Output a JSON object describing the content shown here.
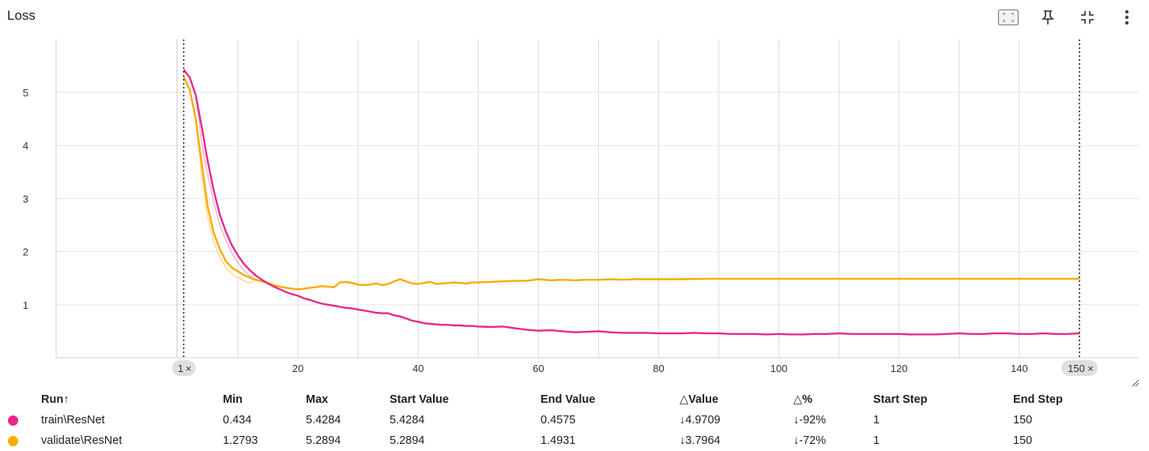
{
  "card": {
    "title": "Loss"
  },
  "toolbar": {
    "icons": [
      "fit-to-data-icon",
      "pin-icon",
      "collapse-icon",
      "more-vert-icon"
    ]
  },
  "colors": {
    "train": "#e7298a",
    "validate": "#f9ab00",
    "train_faint": "#f3b7d6",
    "validate_faint": "#fbdd9a"
  },
  "chart_data": {
    "type": "line",
    "xlim": [
      1,
      150
    ],
    "ylim": [
      0,
      5.5
    ],
    "x_ticks": [
      20,
      40,
      60,
      80,
      100,
      120,
      140
    ],
    "y_ticks": [
      1,
      2,
      3,
      4,
      5
    ],
    "range_markers": [
      {
        "label": "1",
        "x": 1
      },
      {
        "label": "150",
        "x": 150
      }
    ],
    "grid": true,
    "series": [
      {
        "name": "train\\ResNet",
        "color": "#e7298a",
        "points": [
          [
            1,
            5.43
          ],
          [
            2,
            5.28
          ],
          [
            3,
            4.95
          ],
          [
            4,
            4.35
          ],
          [
            5,
            3.7
          ],
          [
            6,
            3.15
          ],
          [
            7,
            2.7
          ],
          [
            8,
            2.38
          ],
          [
            9,
            2.12
          ],
          [
            10,
            1.93
          ],
          [
            11,
            1.77
          ],
          [
            12,
            1.65
          ],
          [
            13,
            1.55
          ],
          [
            14,
            1.47
          ],
          [
            15,
            1.4
          ],
          [
            16,
            1.34
          ],
          [
            17,
            1.29
          ],
          [
            18,
            1.24
          ],
          [
            19,
            1.2
          ],
          [
            20,
            1.17
          ],
          [
            21,
            1.12
          ],
          [
            22,
            1.09
          ],
          [
            23,
            1.05
          ],
          [
            24,
            1.02
          ],
          [
            25,
            1.0
          ],
          [
            26,
            0.98
          ],
          [
            27,
            0.96
          ],
          [
            28,
            0.94
          ],
          [
            29,
            0.93
          ],
          [
            30,
            0.91
          ],
          [
            31,
            0.89
          ],
          [
            32,
            0.87
          ],
          [
            33,
            0.85
          ],
          [
            34,
            0.84
          ],
          [
            35,
            0.84
          ],
          [
            36,
            0.8
          ],
          [
            37,
            0.78
          ],
          [
            38,
            0.74
          ],
          [
            39,
            0.7
          ],
          [
            40,
            0.68
          ],
          [
            41,
            0.65
          ],
          [
            42,
            0.64
          ],
          [
            43,
            0.63
          ],
          [
            44,
            0.62
          ],
          [
            45,
            0.62
          ],
          [
            46,
            0.61
          ],
          [
            47,
            0.61
          ],
          [
            48,
            0.6
          ],
          [
            49,
            0.6
          ],
          [
            50,
            0.59
          ],
          [
            52,
            0.58
          ],
          [
            54,
            0.59
          ],
          [
            56,
            0.56
          ],
          [
            58,
            0.53
          ],
          [
            60,
            0.51
          ],
          [
            62,
            0.52
          ],
          [
            64,
            0.5
          ],
          [
            66,
            0.48
          ],
          [
            68,
            0.49
          ],
          [
            70,
            0.5
          ],
          [
            72,
            0.48
          ],
          [
            74,
            0.47
          ],
          [
            76,
            0.47
          ],
          [
            78,
            0.47
          ],
          [
            80,
            0.46
          ],
          [
            82,
            0.46
          ],
          [
            84,
            0.46
          ],
          [
            86,
            0.47
          ],
          [
            88,
            0.46
          ],
          [
            90,
            0.46
          ],
          [
            92,
            0.45
          ],
          [
            94,
            0.45
          ],
          [
            96,
            0.45
          ],
          [
            98,
            0.44
          ],
          [
            100,
            0.45
          ],
          [
            102,
            0.44
          ],
          [
            104,
            0.44
          ],
          [
            106,
            0.45
          ],
          [
            108,
            0.45
          ],
          [
            110,
            0.46
          ],
          [
            112,
            0.45
          ],
          [
            114,
            0.45
          ],
          [
            116,
            0.45
          ],
          [
            118,
            0.45
          ],
          [
            120,
            0.45
          ],
          [
            122,
            0.44
          ],
          [
            124,
            0.44
          ],
          [
            126,
            0.44
          ],
          [
            128,
            0.45
          ],
          [
            130,
            0.46
          ],
          [
            132,
            0.45
          ],
          [
            134,
            0.45
          ],
          [
            136,
            0.46
          ],
          [
            138,
            0.46
          ],
          [
            140,
            0.45
          ],
          [
            142,
            0.45
          ],
          [
            144,
            0.46
          ],
          [
            146,
            0.45
          ],
          [
            148,
            0.45
          ],
          [
            150,
            0.46
          ]
        ]
      },
      {
        "name": "validate\\ResNet",
        "color": "#f9ab00",
        "points": [
          [
            1,
            5.29
          ],
          [
            2,
            5.05
          ],
          [
            3,
            4.5
          ],
          [
            4,
            3.65
          ],
          [
            5,
            2.85
          ],
          [
            6,
            2.35
          ],
          [
            7,
            2.05
          ],
          [
            8,
            1.82
          ],
          [
            9,
            1.7
          ],
          [
            10,
            1.63
          ],
          [
            11,
            1.56
          ],
          [
            12,
            1.51
          ],
          [
            13,
            1.47
          ],
          [
            14,
            1.44
          ],
          [
            15,
            1.41
          ],
          [
            16,
            1.37
          ],
          [
            17,
            1.34
          ],
          [
            18,
            1.32
          ],
          [
            19,
            1.3
          ],
          [
            20,
            1.29
          ],
          [
            21,
            1.3
          ],
          [
            22,
            1.32
          ],
          [
            23,
            1.33
          ],
          [
            24,
            1.35
          ],
          [
            25,
            1.34
          ],
          [
            26,
            1.33
          ],
          [
            27,
            1.42
          ],
          [
            28,
            1.43
          ],
          [
            29,
            1.41
          ],
          [
            30,
            1.38
          ],
          [
            31,
            1.37
          ],
          [
            32,
            1.38
          ],
          [
            33,
            1.4
          ],
          [
            34,
            1.37
          ],
          [
            35,
            1.39
          ],
          [
            36,
            1.44
          ],
          [
            37,
            1.48
          ],
          [
            38,
            1.44
          ],
          [
            39,
            1.4
          ],
          [
            40,
            1.39
          ],
          [
            41,
            1.41
          ],
          [
            42,
            1.43
          ],
          [
            43,
            1.39
          ],
          [
            44,
            1.4
          ],
          [
            45,
            1.41
          ],
          [
            46,
            1.42
          ],
          [
            47,
            1.41
          ],
          [
            48,
            1.4
          ],
          [
            49,
            1.42
          ],
          [
            50,
            1.42
          ],
          [
            52,
            1.43
          ],
          [
            54,
            1.44
          ],
          [
            56,
            1.45
          ],
          [
            58,
            1.45
          ],
          [
            60,
            1.48
          ],
          [
            62,
            1.46
          ],
          [
            64,
            1.47
          ],
          [
            66,
            1.46
          ],
          [
            68,
            1.47
          ],
          [
            70,
            1.47
          ],
          [
            72,
            1.48
          ],
          [
            74,
            1.47
          ],
          [
            76,
            1.48
          ],
          [
            78,
            1.48
          ],
          [
            80,
            1.48
          ],
          [
            84,
            1.48
          ],
          [
            88,
            1.49
          ],
          [
            92,
            1.49
          ],
          [
            96,
            1.49
          ],
          [
            100,
            1.49
          ],
          [
            104,
            1.49
          ],
          [
            108,
            1.49
          ],
          [
            112,
            1.49
          ],
          [
            116,
            1.49
          ],
          [
            120,
            1.49
          ],
          [
            124,
            1.49
          ],
          [
            128,
            1.49
          ],
          [
            132,
            1.49
          ],
          [
            136,
            1.49
          ],
          [
            140,
            1.49
          ],
          [
            144,
            1.49
          ],
          [
            148,
            1.49
          ],
          [
            150,
            1.49
          ]
        ]
      }
    ]
  },
  "table": {
    "headers": {
      "run": "Run",
      "run_sort_icon": "↑",
      "min": "Min",
      "max": "Max",
      "start_value": "Start Value",
      "end_value": "End Value",
      "delta_value": "△Value",
      "delta_pct": "△%",
      "start_step": "Start Step",
      "end_step": "End Step"
    },
    "rows": [
      {
        "color": "#e7298a",
        "run": "train\\ResNet",
        "min": "0.434",
        "max": "5.4284",
        "start_value": "5.4284",
        "end_value": "0.4575",
        "delta_value": "↓4.9709",
        "delta_pct": "↓-92%",
        "start_step": "1",
        "end_step": "150"
      },
      {
        "color": "#f9ab00",
        "run": "validate\\ResNet",
        "min": "1.2793",
        "max": "5.2894",
        "start_value": "5.2894",
        "end_value": "1.4931",
        "delta_value": "↓3.7964",
        "delta_pct": "↓-72%",
        "start_step": "1",
        "end_step": "150"
      }
    ]
  }
}
